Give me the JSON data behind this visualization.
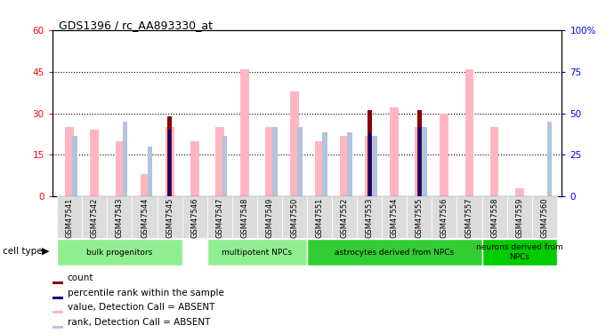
{
  "title": "GDS1396 / rc_AA893330_at",
  "samples": [
    "GSM47541",
    "GSM47542",
    "GSM47543",
    "GSM47544",
    "GSM47545",
    "GSM47546",
    "GSM47547",
    "GSM47548",
    "GSM47549",
    "GSM47550",
    "GSM47551",
    "GSM47552",
    "GSM47553",
    "GSM47554",
    "GSM47555",
    "GSM47556",
    "GSM47557",
    "GSM47558",
    "GSM47559",
    "GSM47560"
  ],
  "count_values": [
    0,
    0,
    0,
    0,
    29,
    0,
    0,
    0,
    0,
    0,
    0,
    0,
    31,
    0,
    31,
    0,
    0,
    0,
    0,
    0
  ],
  "rank_values": [
    0,
    0,
    0,
    0,
    24,
    0,
    0,
    0,
    0,
    0,
    0,
    0,
    23,
    0,
    25,
    0,
    0,
    0,
    0,
    0
  ],
  "pink_values": [
    25,
    24,
    20,
    8,
    25,
    20,
    25,
    46,
    25,
    38,
    20,
    22,
    22,
    32,
    25,
    30,
    46,
    25,
    3,
    0
  ],
  "blue_values": [
    22,
    0,
    27,
    18,
    0,
    0,
    22,
    0,
    25,
    25,
    23,
    23,
    22,
    0,
    25,
    0,
    0,
    0,
    0,
    27
  ],
  "cell_types": [
    {
      "label": "bulk progenitors",
      "start": 0,
      "end": 4,
      "color": "#90EE90"
    },
    {
      "label": "multipotent NPCs",
      "start": 6,
      "end": 9,
      "color": "#90EE90"
    },
    {
      "label": "astrocytes derived from NPCs",
      "start": 10,
      "end": 16,
      "color": "#32CD32"
    },
    {
      "label": "neurons derived from\nNPCs",
      "start": 17,
      "end": 19,
      "color": "#00CC00"
    }
  ],
  "ylim_left": [
    0,
    60
  ],
  "ylim_right": [
    0,
    100
  ],
  "yticks_left": [
    0,
    15,
    30,
    45,
    60
  ],
  "yticks_right": [
    0,
    25,
    50,
    75,
    100
  ],
  "ytick_labels_left": [
    "0",
    "15",
    "30",
    "45",
    "60"
  ],
  "ytick_labels_right": [
    "0",
    "25",
    "50",
    "75",
    "100%"
  ],
  "count_color": "#8B0000",
  "rank_color": "#00008B",
  "pink_color": "#FFB6C1",
  "blue_color": "#B0C4DE",
  "bg_color": "#FFFFFF",
  "dotted_lines": [
    15,
    30,
    45
  ],
  "legend_items": [
    {
      "label": "count",
      "color": "#8B0000"
    },
    {
      "label": "percentile rank within the sample",
      "color": "#00008B"
    },
    {
      "label": "value, Detection Call = ABSENT",
      "color": "#FFB6C1"
    },
    {
      "label": "rank, Detection Call = ABSENT",
      "color": "#B0C4DE"
    }
  ]
}
